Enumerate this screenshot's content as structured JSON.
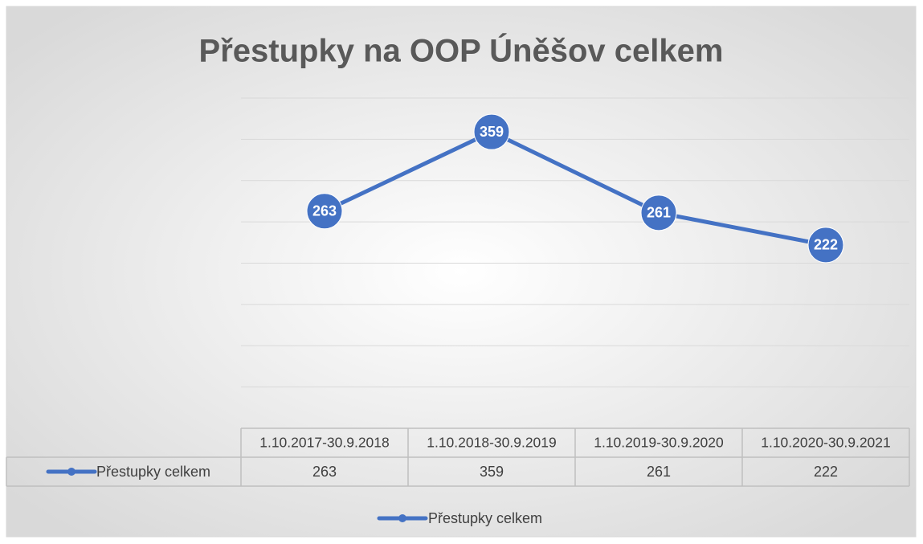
{
  "chart_data": {
    "type": "line",
    "title": "Přestupky na OOP Úněšov celkem",
    "categories": [
      "1.10.2017-30.9.2018",
      "1.10.2018-30.9.2019",
      "1.10.2019-30.9.2020",
      "1.10.2020-30.9.2021"
    ],
    "series": [
      {
        "name": "Přestupky celkem",
        "color": "#4472c4",
        "values": [
          263,
          359,
          261,
          222
        ]
      }
    ],
    "ylim": [
      0,
      400
    ],
    "yticks": [
      0,
      50,
      100,
      150,
      200,
      250,
      300,
      350,
      400
    ],
    "grid": true
  }
}
